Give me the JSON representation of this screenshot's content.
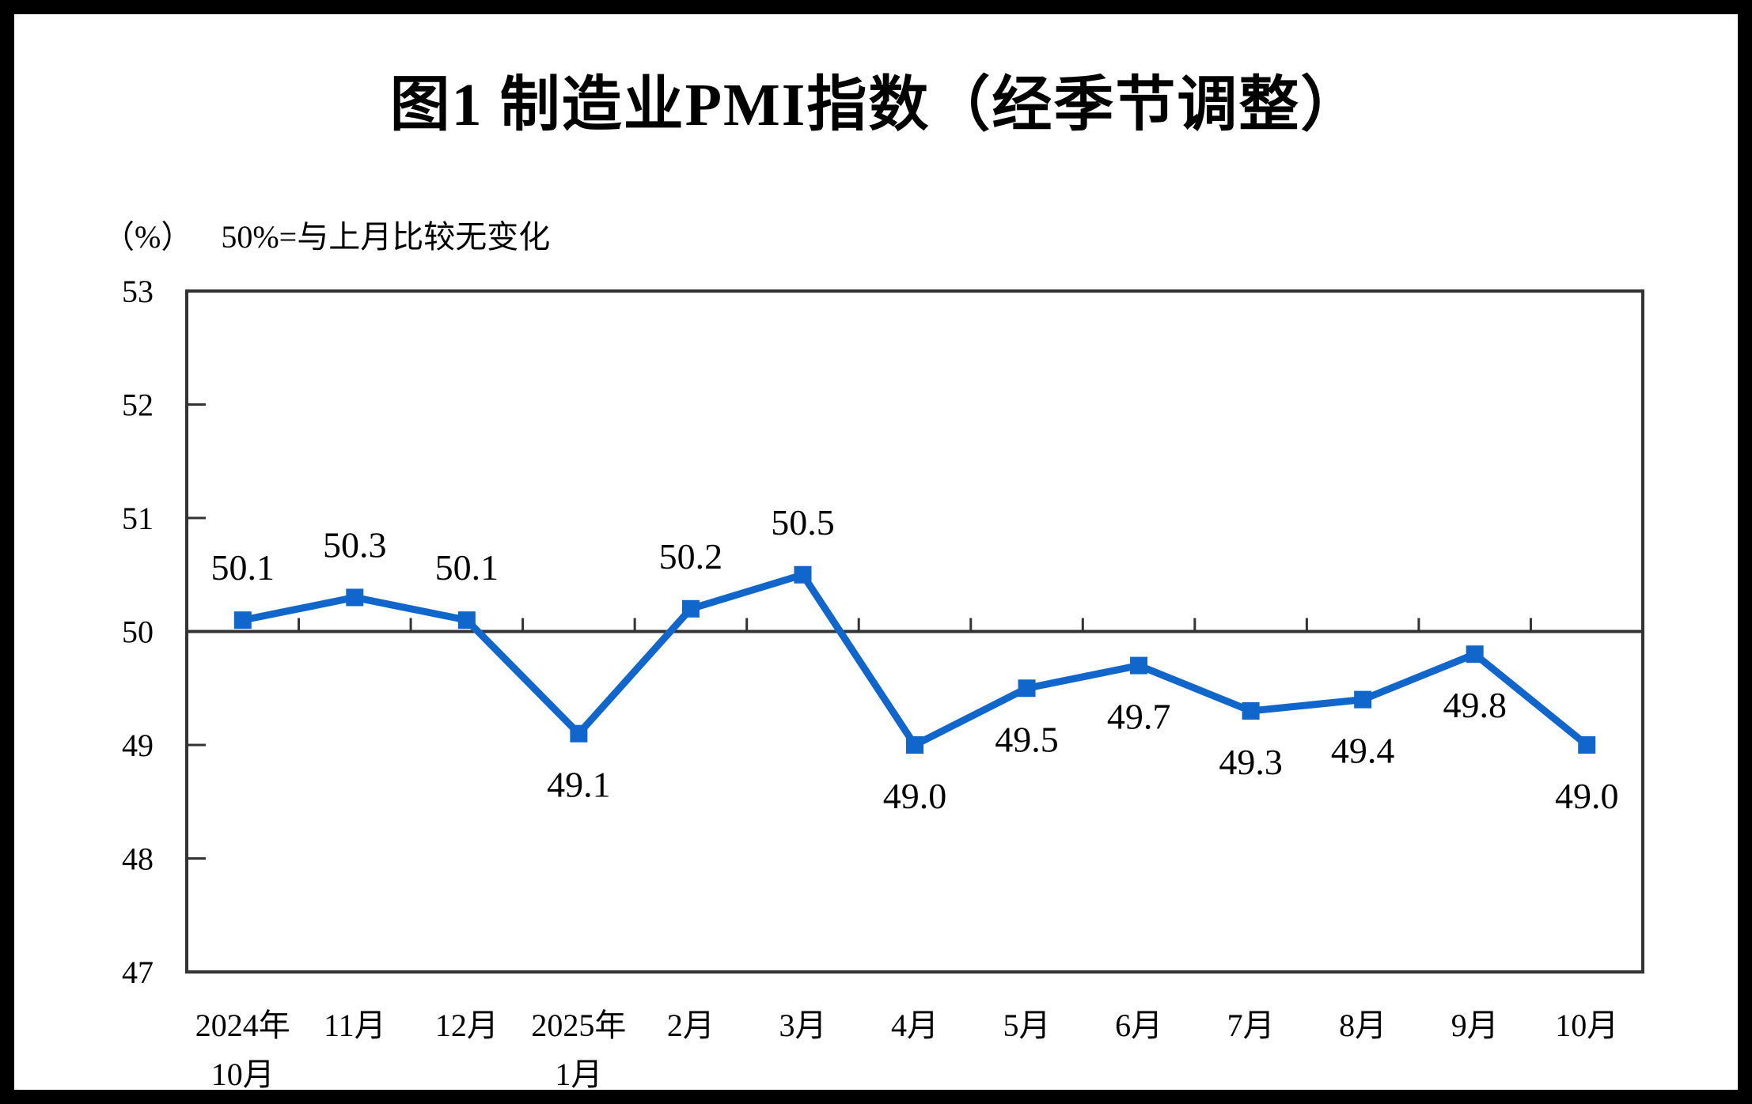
{
  "title": "图1  制造业PMI指数（经季节调整）",
  "subtitle": {
    "unit": "（%）",
    "note": "50%=与上月比较无变化"
  },
  "chart_data": {
    "type": "line",
    "title": "图1 制造业PMI指数（经季节调整）",
    "categories": [
      [
        "2024年",
        "10月"
      ],
      [
        "11月"
      ],
      [
        "12月"
      ],
      [
        "2025年",
        "1月"
      ],
      [
        "2月"
      ],
      [
        "3月"
      ],
      [
        "4月"
      ],
      [
        "5月"
      ],
      [
        "6月"
      ],
      [
        "7月"
      ],
      [
        "8月"
      ],
      [
        "9月"
      ],
      [
        "10月"
      ]
    ],
    "series": [
      {
        "name": "制造业PMI",
        "values": [
          50.1,
          50.3,
          50.1,
          49.1,
          50.2,
          50.5,
          49.0,
          49.5,
          49.7,
          49.3,
          49.4,
          49.8,
          49.0
        ]
      }
    ],
    "data_label_format": "0.0",
    "ylabel_unit": "（%）",
    "reference_line": 50,
    "reference_note": "50%=与上月比较无变化",
    "ylim": [
      47,
      53
    ],
    "yticks": [
      47,
      48,
      49,
      50,
      51,
      52,
      53
    ],
    "grid": false,
    "legend_position": "none",
    "line_color": "#1166CB",
    "marker": "square",
    "axis_color": "#333333",
    "label_color": "#000000"
  }
}
